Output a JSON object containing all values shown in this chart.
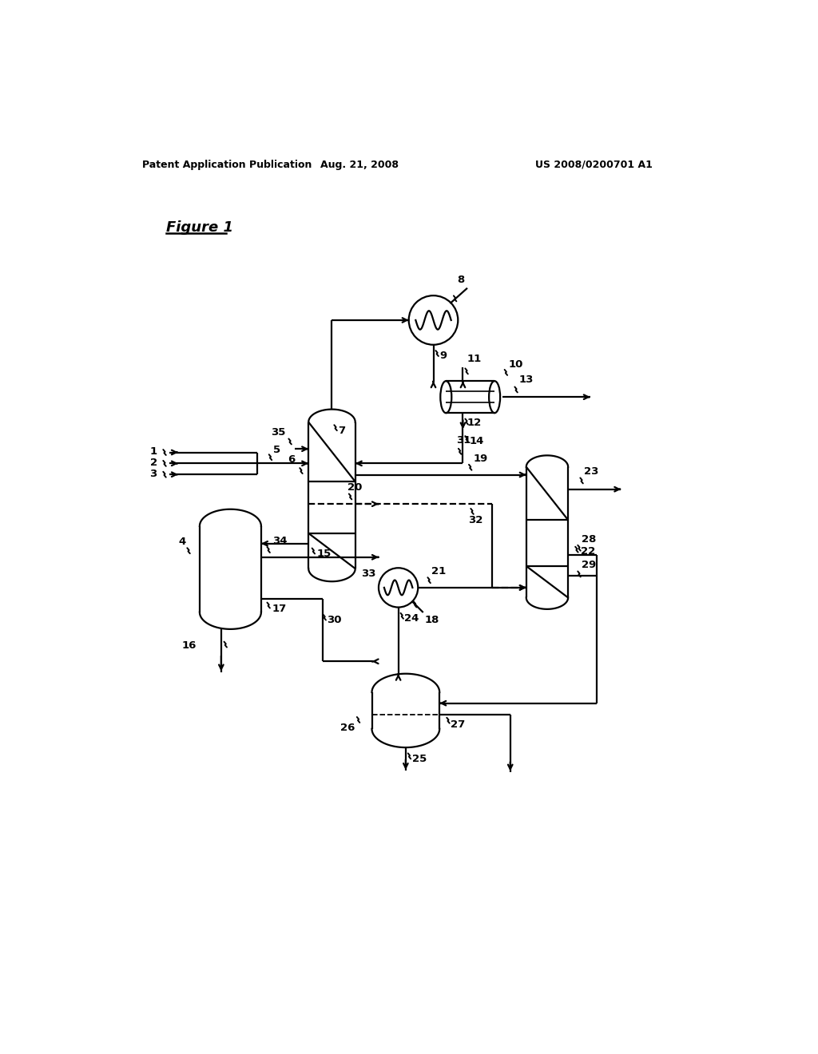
{
  "title_left": "Patent Application Publication",
  "title_center": "Aug. 21, 2008",
  "title_right": "US 2008/0200701 A1",
  "figure_label": "Figure 1",
  "bg_color": "#ffffff",
  "line_color": "#000000",
  "lw": 1.6
}
